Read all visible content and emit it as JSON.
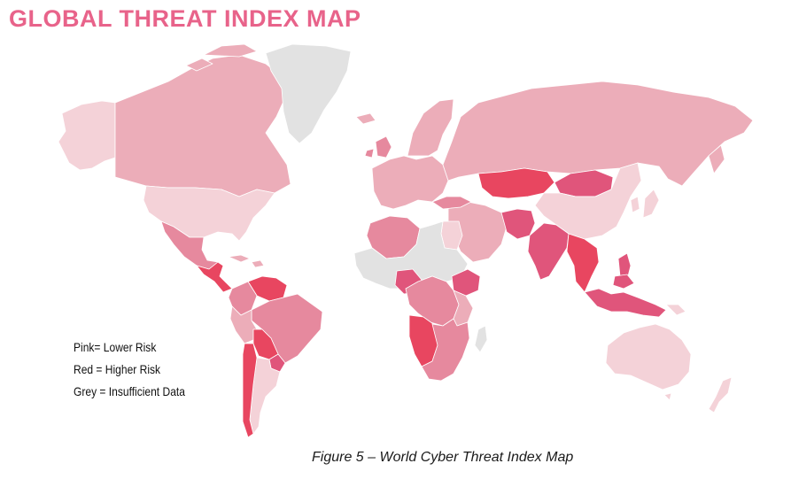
{
  "title": "GLOBAL THREAT INDEX MAP",
  "legend": {
    "pink": "Pink= Lower Risk",
    "red": "Red = Higher Risk",
    "grey": "Grey = Insufficient Data"
  },
  "caption": "Figure 5 – World Cyber Threat Index Map",
  "colors": {
    "pale": "#f4d2d8",
    "light": "#ecadb9",
    "mid": "#e6899e",
    "strong": "#e0557b",
    "red": "#e84660",
    "grey": "#e2e2e2",
    "title": "#e8638a"
  },
  "map": {
    "regions": [
      {
        "name": "Alaska",
        "shade": "pale"
      },
      {
        "name": "Canada",
        "shade": "light"
      },
      {
        "name": "Greenland",
        "shade": "grey"
      },
      {
        "name": "United States",
        "shade": "pale"
      },
      {
        "name": "Mexico",
        "shade": "mid"
      },
      {
        "name": "Central America",
        "shade": "red"
      },
      {
        "name": "Colombia",
        "shade": "mid"
      },
      {
        "name": "Venezuela",
        "shade": "red"
      },
      {
        "name": "Brazil",
        "shade": "mid"
      },
      {
        "name": "Peru",
        "shade": "light"
      },
      {
        "name": "Bolivia",
        "shade": "red"
      },
      {
        "name": "Chile",
        "shade": "red"
      },
      {
        "name": "Argentina",
        "shade": "pale"
      },
      {
        "name": "Western Europe",
        "shade": "light"
      },
      {
        "name": "Scandinavia",
        "shade": "light"
      },
      {
        "name": "Russia",
        "shade": "light"
      },
      {
        "name": "Kazakhstan",
        "shade": "red"
      },
      {
        "name": "Mongolia",
        "shade": "strong"
      },
      {
        "name": "China",
        "shade": "pale"
      },
      {
        "name": "India",
        "shade": "strong"
      },
      {
        "name": "Southeast Asia",
        "shade": "red"
      },
      {
        "name": "Indonesia",
        "shade": "strong"
      },
      {
        "name": "Japan",
        "shade": "pale"
      },
      {
        "name": "Middle East",
        "shade": "light"
      },
      {
        "name": "Pakistan",
        "shade": "strong"
      },
      {
        "name": "North Africa",
        "shade": "mid"
      },
      {
        "name": "Sahara",
        "shade": "grey"
      },
      {
        "name": "Nigeria",
        "shade": "strong"
      },
      {
        "name": "Ethiopia",
        "shade": "strong"
      },
      {
        "name": "Central Africa",
        "shade": "mid"
      },
      {
        "name": "Angola",
        "shade": "red"
      },
      {
        "name": "Southern Africa",
        "shade": "mid"
      },
      {
        "name": "Madagascar",
        "shade": "grey"
      },
      {
        "name": "Australia",
        "shade": "pale"
      },
      {
        "name": "New Zealand",
        "shade": "pale"
      }
    ]
  }
}
